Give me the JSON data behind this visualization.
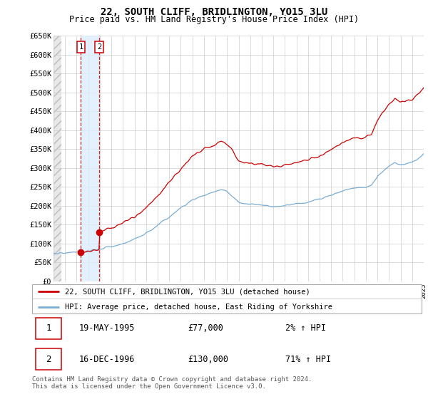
{
  "title": "22, SOUTH CLIFF, BRIDLINGTON, YO15 3LU",
  "subtitle": "Price paid vs. HM Land Registry's House Price Index (HPI)",
  "ylim": [
    0,
    650000
  ],
  "yticks": [
    0,
    50000,
    100000,
    150000,
    200000,
    250000,
    300000,
    350000,
    400000,
    450000,
    500000,
    550000,
    600000,
    650000
  ],
  "ytick_labels": [
    "£0",
    "£50K",
    "£100K",
    "£150K",
    "£200K",
    "£250K",
    "£300K",
    "£350K",
    "£400K",
    "£450K",
    "£500K",
    "£550K",
    "£600K",
    "£650K"
  ],
  "hpi_color": "#7aadd4",
  "price_color": "#cc0000",
  "sale1_date": 1995.37,
  "sale1_price": 77000,
  "sale2_date": 1996.96,
  "sale2_price": 130000,
  "legend_entries": [
    "22, SOUTH CLIFF, BRIDLINGTON, YO15 3LU (detached house)",
    "HPI: Average price, detached house, East Riding of Yorkshire"
  ],
  "table_rows": [
    [
      "1",
      "19-MAY-1995",
      "£77,000",
      "2% ↑ HPI"
    ],
    [
      "2",
      "16-DEC-1996",
      "£130,000",
      "71% ↑ HPI"
    ]
  ],
  "footnote": "Contains HM Land Registry data © Crown copyright and database right 2024.\nThis data is licensed under the Open Government Licence v3.0.",
  "shade_color": "#ddeeff",
  "hatch_color": "#cccccc"
}
